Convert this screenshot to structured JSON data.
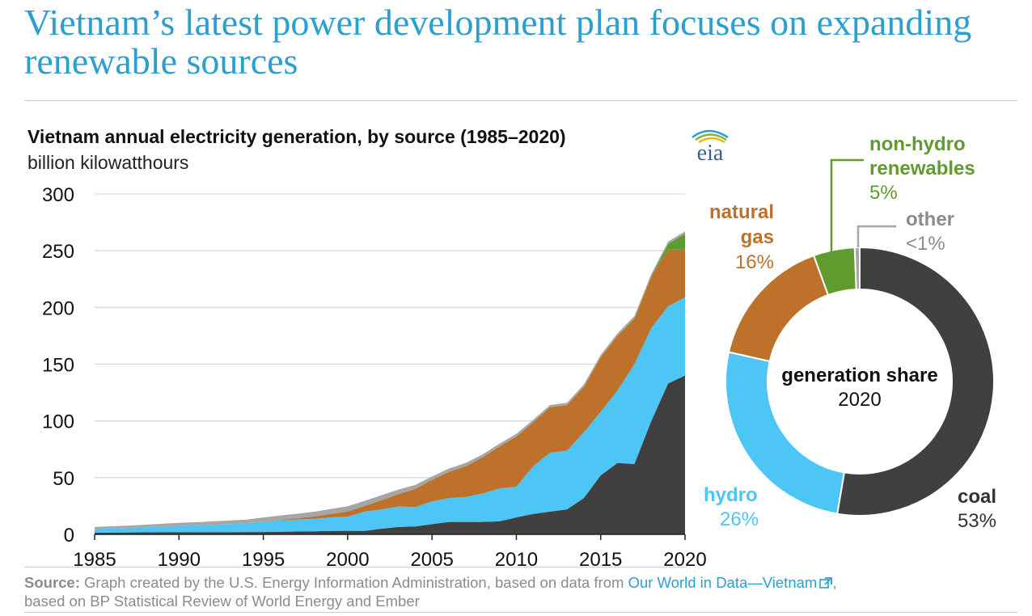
{
  "headline": "Vietnam’s latest power development plan focuses on expanding renewable sources",
  "logo_text": "eia",
  "colors": {
    "headline": "#2b9fd0",
    "coal": "#404040",
    "hydro": "#4dc6f5",
    "natural_gas": "#bd712b",
    "non_hydro_renewables": "#5f9b2f",
    "other": "#a6a6a6"
  },
  "source": {
    "label": "Source:",
    "text_before": " Graph created by the U.S. Energy Information Administration, based on data from ",
    "link_text": "Our World in Data—Vietnam",
    "text_after": ",",
    "line2": "based on BP Statistical Review of World Energy and Ember"
  },
  "chart_data": [
    {
      "type": "area",
      "stacked": true,
      "title": "Vietnam annual electricity generation, by source (1985–2020)",
      "ylabel": "billion kilowatthours",
      "xlabel": "",
      "x_ticks": [
        "1985",
        "1990",
        "1995",
        "2000",
        "2005",
        "2010",
        "2015",
        "2020"
      ],
      "y_ticks": [
        "0",
        "50",
        "100",
        "150",
        "200",
        "250",
        "300"
      ],
      "xlim": [
        1985,
        2020
      ],
      "ylim": [
        0,
        300
      ],
      "grid": "horizontal",
      "x": [
        1985,
        1986,
        1987,
        1988,
        1989,
        1990,
        1991,
        1992,
        1993,
        1994,
        1995,
        1996,
        1997,
        1998,
        1999,
        2000,
        2001,
        2002,
        2003,
        2004,
        2005,
        2006,
        2007,
        2008,
        2009,
        2010,
        2011,
        2012,
        2013,
        2014,
        2015,
        2016,
        2017,
        2018,
        2019,
        2020
      ],
      "series": [
        {
          "name": "coal",
          "color_key": "coal",
          "values": [
            1.5,
            1.6,
            1.7,
            1.8,
            1.9,
            2,
            1.9,
            2,
            2,
            2.1,
            2.1,
            2.3,
            2.5,
            2.7,
            3,
            3.1,
            3,
            5,
            6.5,
            7,
            9,
            11,
            11,
            11,
            11.5,
            15,
            18,
            20,
            22,
            32,
            52,
            63,
            62,
            100,
            133,
            140
          ]
        },
        {
          "name": "hydro",
          "color_key": "hydro",
          "values": [
            3,
            3.5,
            4,
            4.5,
            5,
            5.5,
            6,
            6.5,
            7,
            7.5,
            9,
            10,
            10.5,
            11,
            12,
            12.5,
            17,
            17,
            18,
            17,
            20,
            21,
            22,
            25,
            29,
            27,
            42,
            52,
            52,
            58,
            56,
            64,
            88,
            82,
            68,
            69
          ]
        },
        {
          "name": "natural gas",
          "color_key": "natural_gas",
          "values": [
            0,
            0,
            0,
            0,
            0,
            0,
            0,
            0,
            0,
            0,
            0.2,
            0.4,
            1.2,
            2,
            3,
            4.5,
            5,
            8,
            11,
            16,
            19,
            23,
            27,
            32,
            37,
            44,
            39,
            40,
            40,
            40,
            48,
            48,
            40,
            45,
            50,
            42
          ]
        },
        {
          "name": "non-hydro renewables",
          "color_key": "non_hydro_renewables",
          "values": [
            0,
            0,
            0,
            0,
            0,
            0,
            0,
            0,
            0,
            0,
            0,
            0,
            0,
            0,
            0,
            0,
            0,
            0,
            0,
            0,
            0,
            0,
            0,
            0,
            0,
            0,
            0,
            0,
            0,
            0.1,
            0.2,
            0.3,
            0.4,
            0.5,
            5,
            14
          ]
        },
        {
          "name": "other",
          "color_key": "other",
          "values": [
            2,
            2,
            2,
            2.2,
            2.4,
            2.6,
            2.8,
            3,
            3.2,
            3.4,
            3.6,
            3.8,
            4,
            4.2,
            4.4,
            4.6,
            4.5,
            4.5,
            4,
            3.5,
            3,
            3,
            3,
            2.5,
            2.5,
            2.5,
            2,
            2,
            2,
            2,
            2,
            2,
            2,
            2,
            2,
            2
          ]
        }
      ]
    },
    {
      "type": "pie",
      "donut": true,
      "title": "generation share",
      "subtitle": "2020",
      "slices": [
        {
          "label": "coal",
          "pct_text": "53%",
          "value": 53,
          "color_key": "coal"
        },
        {
          "label": "hydro",
          "pct_text": "26%",
          "value": 26,
          "color_key": "hydro"
        },
        {
          "label": "natural gas",
          "label_line1": "natural",
          "label_line2": "gas",
          "pct_text": "16%",
          "value": 16,
          "color_key": "natural_gas"
        },
        {
          "label": "non-hydro renewables",
          "label_line1": "non-hydro",
          "label_line2": "renewables",
          "pct_text": "5%",
          "value": 5,
          "color_key": "non_hydro_renewables"
        },
        {
          "label": "other",
          "pct_text": "<1%",
          "value": 0.6,
          "color_key": "other"
        }
      ]
    }
  ]
}
